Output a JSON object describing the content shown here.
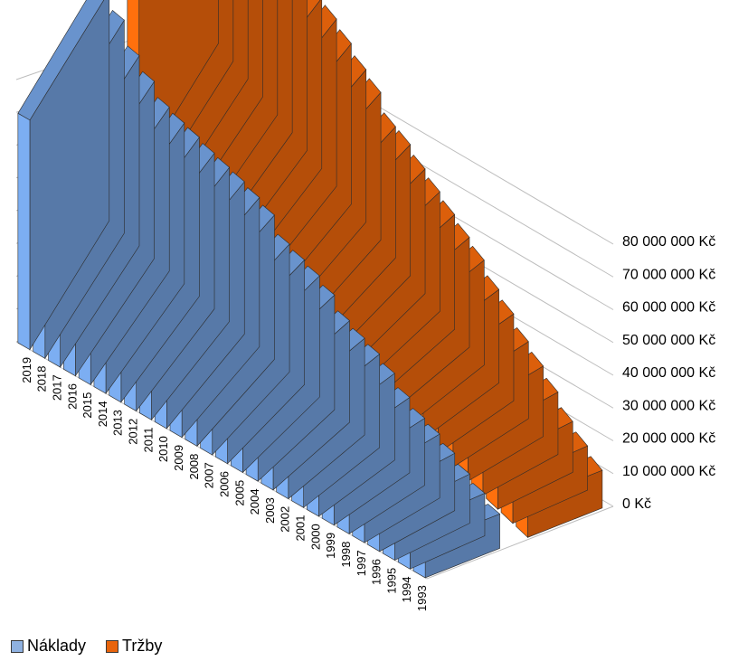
{
  "chart_data": {
    "type": "bar",
    "view": "3d-bar",
    "categories": [
      "2019",
      "2018",
      "2017",
      "2016",
      "2015",
      "2014",
      "2013",
      "2012",
      "2011",
      "2010",
      "2009",
      "2008",
      "2007",
      "2006",
      "2005",
      "2004",
      "2003",
      "2002",
      "2001",
      "2000",
      "1999",
      "1998",
      "1997",
      "1996",
      "1995",
      "1994",
      "1993"
    ],
    "series": [
      {
        "name": "Náklady",
        "color": "#6f9bd8",
        "values": [
          70000000,
          65000000,
          58000000,
          54000000,
          50000000,
          49000000,
          48500000,
          47500000,
          47000000,
          46500000,
          45500000,
          44000000,
          39000000,
          38000000,
          37000000,
          35000000,
          31000000,
          29500000,
          28500000,
          26500000,
          23000000,
          20500000,
          19500000,
          17500000,
          15000000,
          13000000,
          10500000
        ]
      },
      {
        "name": "Tržby",
        "color": "#e8640c",
        "values": [
          72000000,
          70000000,
          60000000,
          57000000,
          55000000,
          54000000,
          53000000,
          52000000,
          51000000,
          49000000,
          46500000,
          45000000,
          40000000,
          40000000,
          38000000,
          36500000,
          35000000,
          33500000,
          32000000,
          28500000,
          26500000,
          23500000,
          21500000,
          19000000,
          15500000,
          13500000,
          11500000
        ]
      }
    ],
    "y_ticks": [
      "80 000 000 Kč",
      "70 000 000 Kč",
      "60 000 000 Kč",
      "50 000 000 Kč",
      "40 000 000 Kč",
      "30 000 000 Kč",
      "20 000 000 Kč",
      "10 000 000 Kč",
      "0 Kč"
    ],
    "ylim": [
      0,
      80000000
    ],
    "grid": true,
    "legend_position": "bottom-left",
    "title": "",
    "xlabel": "",
    "ylabel": ""
  }
}
